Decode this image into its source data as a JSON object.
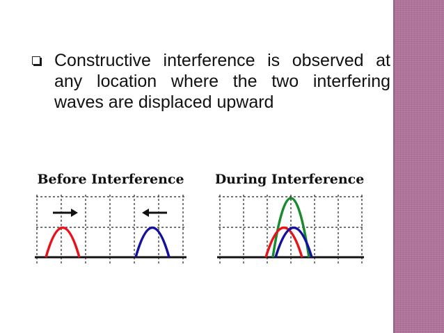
{
  "slide": {
    "bullet_text": "Constructive interference is observed at any location where the two interfering waves are displaced upward",
    "figures": [
      {
        "title": "Before Interference"
      },
      {
        "title": "During Interference"
      }
    ]
  },
  "colors": {
    "sidebar": "#b0749b",
    "wave_red": "#e8121b",
    "wave_blue": "#12129e",
    "wave_green": "#1a8a2e"
  }
}
